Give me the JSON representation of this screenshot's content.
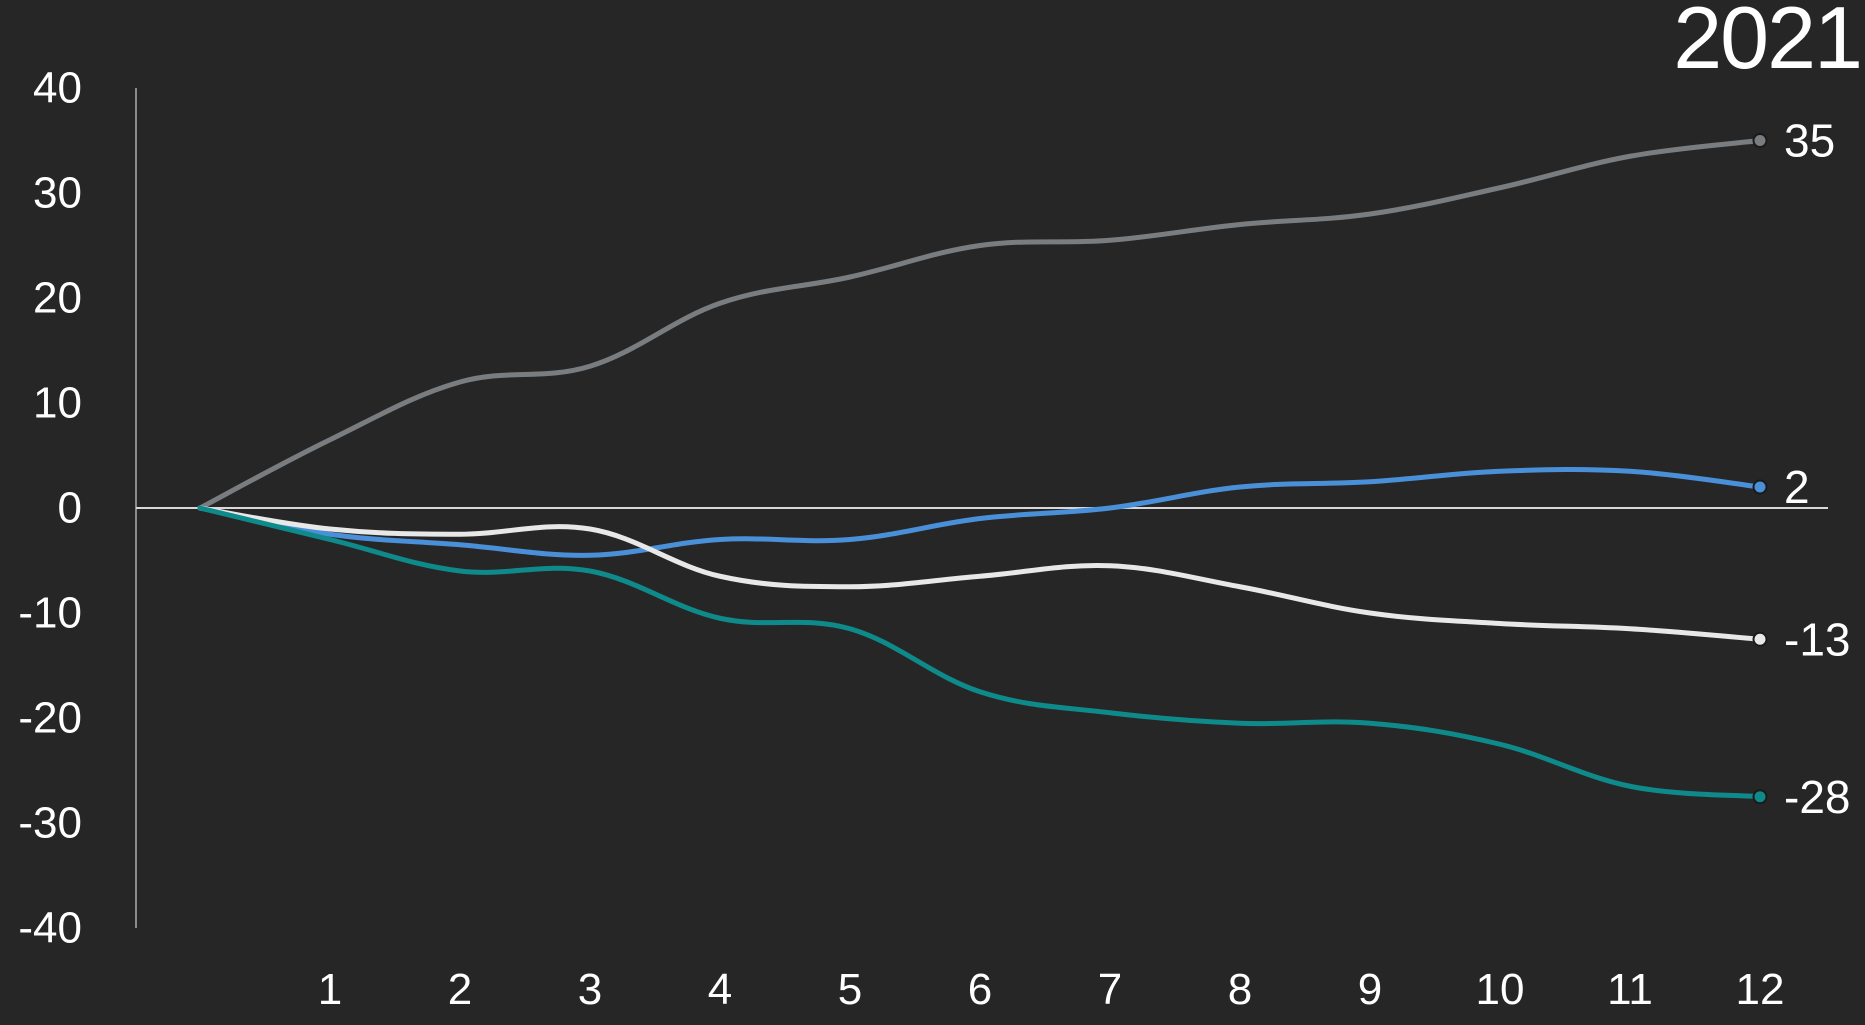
{
  "chart_data": {
    "type": "line",
    "title": "2021",
    "x": [
      0,
      1,
      2,
      3,
      4,
      5,
      6,
      7,
      8,
      9,
      10,
      11,
      12
    ],
    "xticks": [
      "1",
      "2",
      "3",
      "4",
      "5",
      "6",
      "7",
      "8",
      "9",
      "10",
      "11",
      "12"
    ],
    "ylim": [
      -40,
      40
    ],
    "yticks": [
      "40",
      "30",
      "20",
      "10",
      "0",
      "-10",
      "-20",
      "-30",
      "-40"
    ],
    "yticks_values": [
      40,
      30,
      20,
      10,
      0,
      -10,
      -20,
      -30,
      -40
    ],
    "grid": false,
    "series": [
      {
        "color": "#7a7d80",
        "values": [
          0,
          6.5,
          12,
          13.5,
          19.5,
          22,
          25,
          25.5,
          27,
          28,
          30.5,
          33.5,
          35
        ],
        "end_label": "35"
      },
      {
        "color": "#4a90d9",
        "values": [
          0,
          -2.5,
          -3.5,
          -4.5,
          -3,
          -3,
          -1,
          0,
          2,
          2.5,
          3.5,
          3.5,
          2
        ],
        "end_label": "2"
      },
      {
        "color": "#e8e8e8",
        "values": [
          0,
          -2,
          -2.5,
          -2,
          -6.5,
          -7.5,
          -6.5,
          -5.5,
          -7.5,
          -10,
          -11,
          -11.5,
          -12.5
        ],
        "end_label": "-13"
      },
      {
        "color": "#0f8a8a",
        "values": [
          0,
          -3,
          -6,
          -6,
          -10.5,
          -11.5,
          -17.5,
          -19.5,
          -20.5,
          -20.5,
          -22.5,
          -26.5,
          -27.5
        ],
        "end_label": "-28"
      }
    ]
  }
}
